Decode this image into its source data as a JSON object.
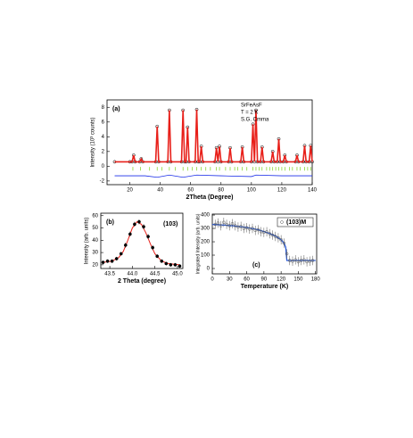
{
  "chart_data": [
    {
      "type": "line",
      "label": "(a)",
      "annotations": [
        "SrFeAsF",
        "T = 2 K",
        "S.G. Cmma"
      ],
      "xlabel": "2Theta (Degree)",
      "ylabel": "Intensity (10³ counts)",
      "xlim": [
        5,
        140
      ],
      "ylim": [
        -2.5,
        9
      ],
      "xticks": [
        20,
        40,
        60,
        80,
        100,
        120,
        140
      ],
      "yticks": [
        -2,
        0,
        2,
        4,
        6,
        8
      ],
      "profile": {
        "color": "#e8201a",
        "marker_color": "#000000",
        "x": [
          10,
          20,
          21.5,
          22.5,
          23.5,
          26.5,
          27.5,
          28.5,
          37,
          38,
          39,
          45,
          46,
          47,
          54,
          55,
          56,
          57,
          58,
          59,
          63,
          64,
          65,
          66,
          67,
          68,
          76,
          77,
          78,
          79,
          80,
          85,
          86,
          87,
          93,
          94,
          95,
          100,
          101,
          102,
          103,
          104,
          106,
          107,
          108,
          113,
          114,
          115,
          117,
          118,
          119,
          121,
          122,
          123,
          129,
          130,
          131,
          134,
          135,
          136,
          138,
          139,
          140
        ],
        "values": [
          0.6,
          0.6,
          0.6,
          1.5,
          0.6,
          0.6,
          1.0,
          0.6,
          0.6,
          5.4,
          0.6,
          0.6,
          7.6,
          0.6,
          0.6,
          7.6,
          0.6,
          0.6,
          5.3,
          0.6,
          0.6,
          7.7,
          0.6,
          0.6,
          2.7,
          0.6,
          0.6,
          2.5,
          0.6,
          2.7,
          0.6,
          0.6,
          2.5,
          0.6,
          0.6,
          2.6,
          0.6,
          0.6,
          5.7,
          0.6,
          7.6,
          0.6,
          0.6,
          2.6,
          0.6,
          0.6,
          2.0,
          0.6,
          0.6,
          3.7,
          0.6,
          0.6,
          1.5,
          0.6,
          0.6,
          1.5,
          0.6,
          0.6,
          2.8,
          0.6,
          0.6,
          2.8,
          0.6
        ]
      },
      "difference": {
        "color": "#1a2ee8",
        "x": [
          10,
          30,
          38,
          46,
          55,
          64,
          80,
          100,
          103,
          120,
          140
        ],
        "values": [
          -1.3,
          -1.3,
          -1.5,
          -1.2,
          -1.5,
          -1.2,
          -1.3,
          -1.4,
          -1.2,
          -1.3,
          -1.3
        ]
      },
      "bragg": {
        "color": "#7ad11a",
        "x": [
          22,
          27,
          33,
          38,
          41,
          46,
          50,
          55,
          58,
          61,
          64,
          67,
          70,
          73,
          77,
          79,
          83,
          86,
          89,
          91,
          94,
          97,
          101,
          103,
          105,
          107,
          110,
          112,
          114,
          116,
          118,
          120,
          122,
          125,
          127,
          130,
          132,
          135,
          137,
          139
        ]
      }
    },
    {
      "type": "scatter",
      "label": "(b)",
      "annotations": [
        "(103)"
      ],
      "xlabel": "2 Theta (degree)",
      "ylabel": "Intensity (arb. units)",
      "xlim": [
        43.3,
        45.12
      ],
      "ylim": [
        17,
        62
      ],
      "xticks": [
        43.5,
        {
          "value": 44,
          "label": "44.0"
        },
        44.5,
        {
          "value": 45,
          "label": "45.0"
        }
      ],
      "yticks": [
        20,
        30,
        40,
        50,
        60
      ],
      "points": {
        "color": "#000000",
        "x": [
          43.35,
          43.45,
          43.55,
          43.65,
          43.75,
          43.85,
          43.95,
          44.05,
          44.15,
          44.25,
          44.35,
          44.45,
          44.55,
          44.65,
          44.75,
          44.85,
          44.95,
          45.05
        ],
        "values": [
          22,
          23,
          23,
          25,
          29,
          36,
          45,
          53,
          55,
          51,
          43,
          34,
          27,
          23,
          21,
          20,
          20,
          19
        ],
        "errors": [
          1.5,
          1.5,
          1.5,
          1.5,
          1.5,
          2,
          2,
          2,
          2,
          2,
          2,
          2,
          1.5,
          1.5,
          1.5,
          1.5,
          1.5,
          1.5
        ]
      },
      "fit": {
        "color": "#e8201a",
        "x": [
          43.35,
          43.55,
          43.7,
          43.8,
          43.9,
          44.0,
          44.1,
          44.2,
          44.3,
          44.4,
          44.5,
          44.65,
          44.8,
          45.05
        ],
        "values": [
          22,
          23,
          26,
          31,
          40,
          50,
          55,
          53,
          46,
          37,
          29,
          23,
          21,
          20
        ]
      }
    },
    {
      "type": "scatter",
      "label": "(c)",
      "legend": "(103)M",
      "xlabel": "Temperature (K)",
      "ylabel": "Integrated Intensity (arb. units)",
      "xlim": [
        0,
        182
      ],
      "ylim": [
        -40,
        407
      ],
      "xticks": [
        0,
        30,
        60,
        90,
        120,
        150,
        180
      ],
      "yticks": [
        0,
        100,
        200,
        300,
        400
      ],
      "points": {
        "color": "#555555",
        "x": [
          5,
          10,
          15,
          20,
          25,
          30,
          35,
          40,
          45,
          50,
          55,
          60,
          65,
          70,
          75,
          80,
          85,
          90,
          95,
          100,
          105,
          110,
          115,
          120,
          125,
          130,
          135,
          140,
          145,
          150,
          155,
          160,
          165,
          170,
          175
        ],
        "values": [
          330,
          340,
          320,
          345,
          330,
          320,
          335,
          320,
          310,
          315,
          300,
          305,
          295,
          300,
          285,
          290,
          275,
          270,
          275,
          260,
          250,
          240,
          230,
          215,
          190,
          110,
          60,
          55,
          65,
          50,
          60,
          65,
          50,
          55,
          60
        ],
        "errors": [
          35,
          35,
          35,
          35,
          35,
          35,
          35,
          35,
          35,
          35,
          35,
          35,
          35,
          35,
          35,
          35,
          35,
          35,
          35,
          35,
          35,
          35,
          35,
          35,
          35,
          35,
          35,
          35,
          35,
          35,
          35,
          35,
          35,
          35,
          35
        ]
      },
      "fit": {
        "color": "#2a5bd7",
        "x": [
          0,
          20,
          40,
          60,
          80,
          100,
          110,
          120,
          125,
          128,
          130,
          180
        ],
        "values": [
          330,
          325,
          318,
          307,
          290,
          262,
          243,
          215,
          190,
          160,
          60,
          60
        ]
      }
    }
  ]
}
